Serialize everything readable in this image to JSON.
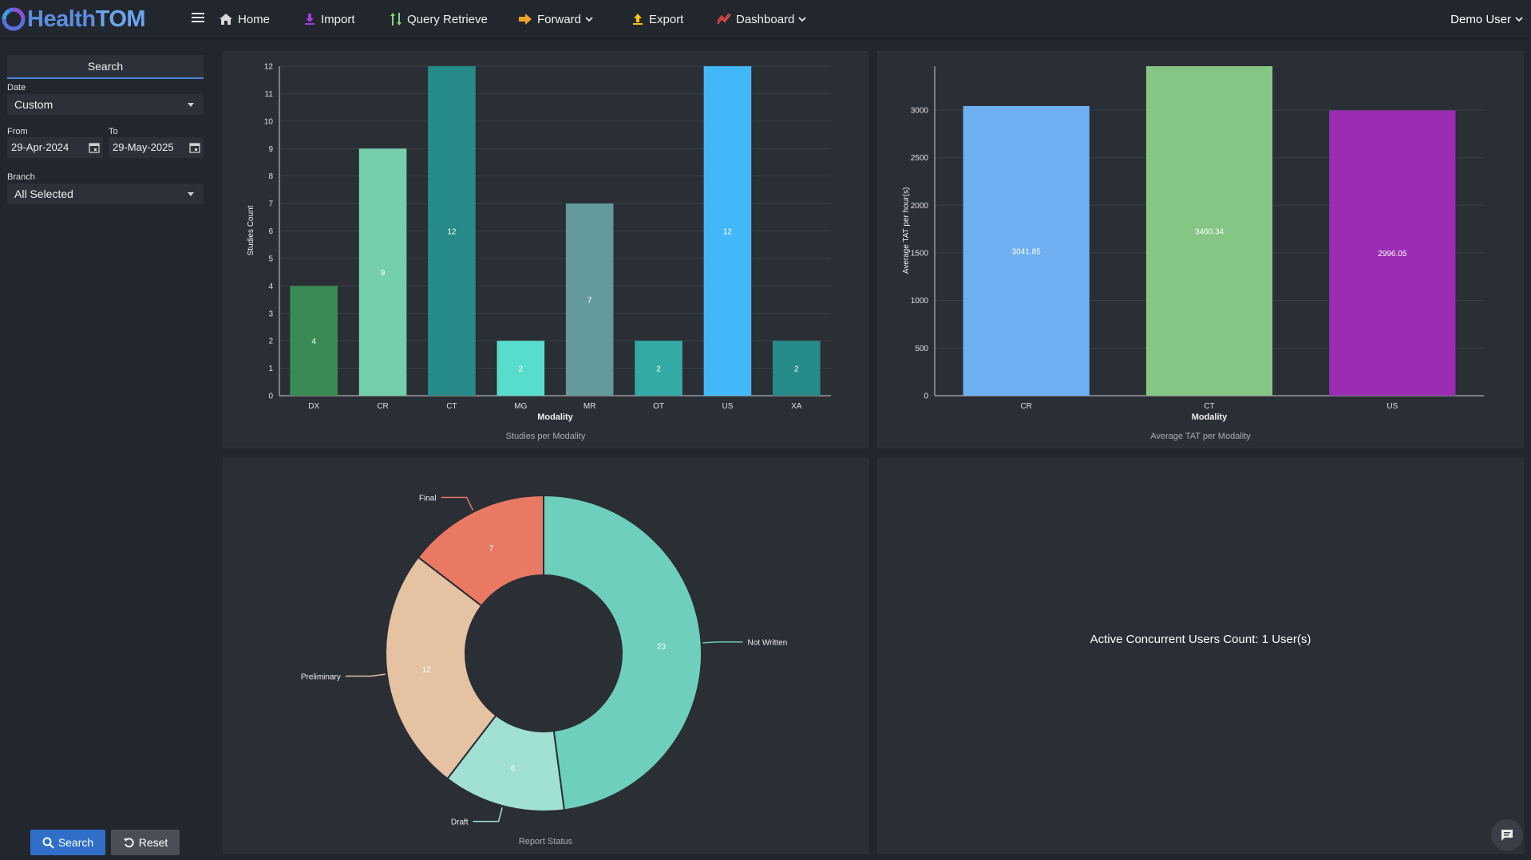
{
  "app": {
    "logo_part1": "Health",
    "logo_part2": "TOM",
    "user_name": "Demo User"
  },
  "nav": {
    "home": "Home",
    "import": "Import",
    "query_retrieve": "Query Retrieve",
    "forward": "Forward",
    "export": "Export",
    "dashboard": "Dashboard"
  },
  "sidebar": {
    "title": "Search",
    "date_label": "Date",
    "date_value": "Custom",
    "from_label": "From",
    "from_value": "29-Apr-2024",
    "to_label": "To",
    "to_value": "29-May-2025",
    "branch_label": "Branch",
    "branch_value": "All Selected",
    "search_button": "Search",
    "reset_button": "Reset"
  },
  "active_users": {
    "text": "Active Concurrent Users Count: 1 User(s)"
  },
  "colors": {
    "accent": "#2f6fc9",
    "background": "#22262d",
    "panel": "#2a2e35"
  },
  "chart_data": [
    {
      "type": "bar",
      "title": "Studies per Modality",
      "xlabel": "Modality",
      "ylabel": "Studies Count",
      "ylim": [
        0,
        12
      ],
      "yticks": [
        0,
        1,
        2,
        3,
        4,
        5,
        6,
        7,
        8,
        9,
        10,
        11,
        12
      ],
      "categories": [
        "DX",
        "CR",
        "CT",
        "MG",
        "MR",
        "OT",
        "US",
        "XA"
      ],
      "values": [
        4,
        9,
        12,
        2,
        7,
        2,
        12,
        2
      ],
      "colors": [
        "#3a8a55",
        "#74cfaa",
        "#268a88",
        "#58dccb",
        "#639a9c",
        "#34aaa6",
        "#42b8f8",
        "#268a88"
      ],
      "grid": true
    },
    {
      "type": "bar",
      "title": "Average TAT per Modality",
      "xlabel": "Modality",
      "ylabel": "Average TAT per hour(s)",
      "ylim": [
        0,
        3460.34
      ],
      "yticks": [
        0,
        500,
        1000,
        1500,
        2000,
        2500,
        3000
      ],
      "categories": [
        "CR",
        "CT",
        "US"
      ],
      "values": [
        3041.85,
        3460.34,
        2996.05
      ],
      "labels": [
        "3041.85",
        "3460.34",
        "2996.05"
      ],
      "colors": [
        "#6fb0f2",
        "#86c684",
        "#9a2db2"
      ],
      "grid": true
    },
    {
      "type": "pie",
      "title": "Report Status",
      "categories": [
        "Not Written",
        "Draft",
        "Preliminary",
        "Final"
      ],
      "values": [
        23,
        6,
        12,
        7
      ],
      "colors": [
        "#6ecfbd",
        "#a1e0d5",
        "#e4c2a2",
        "#ea7964"
      ]
    }
  ]
}
